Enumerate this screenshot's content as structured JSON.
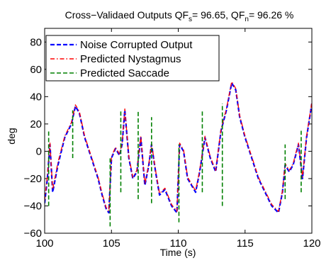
{
  "chart_data": {
    "type": "line",
    "title_main": "Cross−Validaed Outputs QF",
    "title_sub_s": "s",
    "title_val_s": "= 96.65, QF",
    "title_sub_n": "n",
    "title_val_n": "= 96.26 %",
    "xlabel": "Time (s)",
    "ylabel": "deg",
    "xlim": [
      100,
      120
    ],
    "ylim": [
      -60,
      90
    ],
    "xticks": [
      100,
      105,
      110,
      115,
      120
    ],
    "yticks": [
      80,
      60,
      40,
      20,
      0,
      -20,
      -40,
      -60
    ],
    "ytick_labels": [
      "80",
      "60",
      "40",
      "20",
      "0",
      "−20",
      "−40",
      "−60"
    ],
    "legend_position": "top-left",
    "series": [
      {
        "name": "Noise Corrupted Output",
        "color": "#0000ff",
        "style": "dashed",
        "x": [
          100.0,
          100.2,
          100.4,
          100.6,
          101.0,
          101.5,
          102.0,
          102.3,
          102.6,
          103.0,
          103.5,
          104.0,
          104.3,
          104.6,
          104.8,
          104.9,
          105.0,
          105.3,
          105.6,
          105.8,
          106.0,
          106.3,
          106.6,
          106.9,
          107.2,
          107.5,
          107.8,
          108.0,
          108.3,
          108.6,
          109.0,
          109.5,
          109.9,
          110.1,
          110.4,
          110.7,
          111.0,
          111.3,
          111.6,
          112.0,
          112.4,
          112.8,
          113.2,
          113.6,
          114.0,
          114.3,
          114.6,
          115.0,
          115.5,
          116.0,
          116.5,
          117.0,
          117.5,
          117.8,
          118.0,
          118.3,
          118.6,
          119.0,
          119.3,
          119.6,
          120.0
        ],
        "y": [
          -38,
          -20,
          5,
          -30,
          -10,
          10,
          20,
          33,
          28,
          10,
          -5,
          -20,
          -32,
          -42,
          -45,
          -25,
          -5,
          2,
          -3,
          5,
          30,
          -5,
          -20,
          -15,
          10,
          -25,
          -10,
          5,
          -15,
          -32,
          -28,
          -40,
          -45,
          5,
          0,
          -20,
          -25,
          -30,
          -15,
          10,
          -5,
          -15,
          15,
          30,
          50,
          45,
          25,
          10,
          -5,
          -20,
          -30,
          -40,
          -45,
          -30,
          -10,
          -15,
          -10,
          5,
          -20,
          10,
          35
        ]
      },
      {
        "name": "Predicted Nystagmus",
        "color": "#ff0000",
        "style": "dashdot",
        "x": [
          100.0,
          100.2,
          100.4,
          100.6,
          101.0,
          101.5,
          102.0,
          102.3,
          102.6,
          103.0,
          103.5,
          104.0,
          104.3,
          104.6,
          104.8,
          104.9,
          105.0,
          105.3,
          105.6,
          105.8,
          106.0,
          106.3,
          106.6,
          106.9,
          107.2,
          107.5,
          107.8,
          108.0,
          108.3,
          108.6,
          109.0,
          109.5,
          109.9,
          110.1,
          110.4,
          110.7,
          111.0,
          111.3,
          111.6,
          112.0,
          112.4,
          112.8,
          113.2,
          113.6,
          114.0,
          114.3,
          114.6,
          115.0,
          115.5,
          116.0,
          116.5,
          117.0,
          117.5,
          117.8,
          118.0,
          118.3,
          118.6,
          119.0,
          119.3,
          119.6,
          120.0
        ],
        "y": [
          -36,
          -18,
          6,
          -28,
          -8,
          11,
          21,
          34,
          29,
          11,
          -4,
          -19,
          -31,
          -41,
          -44,
          -24,
          -4,
          3,
          -2,
          6,
          31,
          -4,
          -19,
          -14,
          11,
          -24,
          -9,
          6,
          -14,
          -31,
          -27,
          -39,
          -44,
          6,
          1,
          -19,
          -24,
          -29,
          -14,
          11,
          -4,
          -14,
          16,
          31,
          51,
          46,
          26,
          11,
          -4,
          -19,
          -29,
          -39,
          -44,
          -29,
          -9,
          -14,
          -9,
          6,
          -19,
          11,
          36
        ]
      },
      {
        "name": "Predicted Saccade",
        "color": "#008000",
        "style": "dashed",
        "x": [
          100.3,
          100.3,
          102.1,
          102.1,
          104.9,
          104.9,
          105.7,
          105.7,
          107.0,
          107.0,
          108.0,
          108.0,
          110.05,
          110.05,
          111.8,
          111.8,
          113.3,
          113.3,
          118.0,
          118.0,
          119.2,
          119.2
        ],
        "y": [
          -40,
          15,
          -5,
          30,
          -55,
          -5,
          -30,
          30,
          -35,
          30,
          -38,
          25,
          -52,
          5,
          -30,
          30,
          -40,
          35,
          -35,
          5,
          -30,
          15
        ]
      }
    ]
  }
}
